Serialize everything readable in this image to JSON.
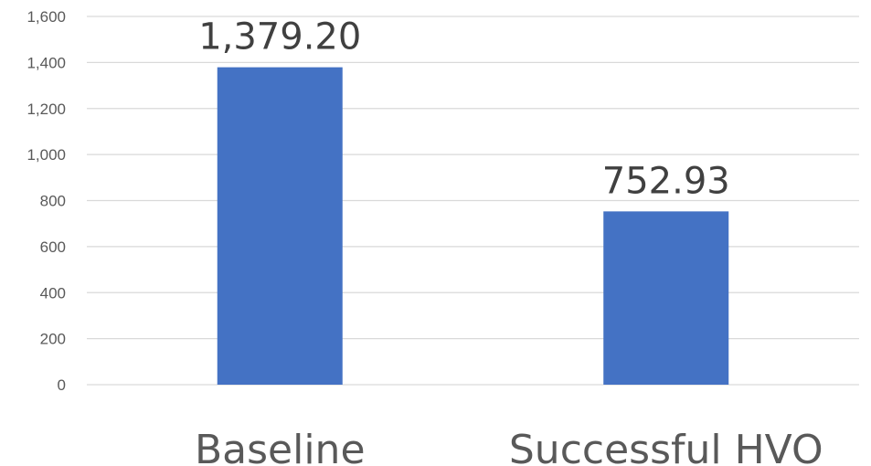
{
  "chart_data": {
    "type": "bar",
    "categories": [
      "Baseline",
      "Successful HVO"
    ],
    "values": [
      1379.2,
      752.93
    ],
    "data_labels": [
      "1,379.20",
      "752.93"
    ],
    "title": "",
    "xlabel": "",
    "ylabel": "",
    "ylim": [
      0,
      1600
    ],
    "y_ticks": [
      0,
      200,
      400,
      600,
      800,
      1000,
      1200,
      1400,
      1600
    ],
    "y_tick_labels": [
      "0",
      "200",
      "400",
      "600",
      "800",
      "1,000",
      "1,200",
      "1,400",
      "1,600"
    ],
    "grid": true,
    "legend": "none",
    "colors": {
      "bar": "#4472c4",
      "grid": "#d9d9d9"
    }
  }
}
